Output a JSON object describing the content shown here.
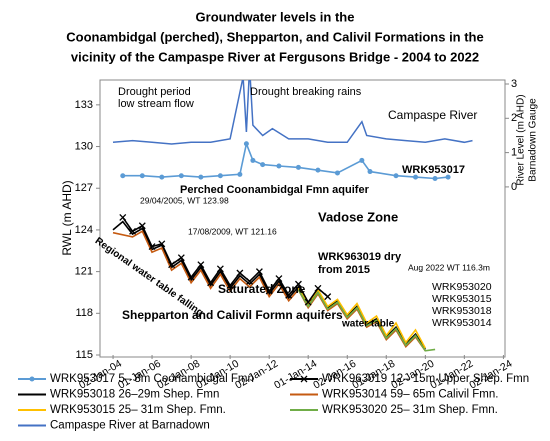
{
  "chart_data": {
    "type": "line",
    "title": [
      "Groundwater levels in the",
      "Coonambidgal (perched), Shepparton, and Calivil Formations in the",
      "vicinity of  the Campaspe River at Fergusons Bridge -  2004 to 2022"
    ],
    "ylabel": "RWL (m AHD)",
    "y2label": [
      "River Level (m AHD)",
      "Barnadown Gauge"
    ],
    "xlim": [
      "2003-05",
      "2024-02"
    ],
    "xticks": [
      {
        "value": "2004-01-02",
        "label": "02-Jan-04"
      },
      {
        "value": "2006-01-01",
        "label": "01-Jan-06"
      },
      {
        "value": "2008-01-02",
        "label": "02-Jan-08"
      },
      {
        "value": "2010-01-01",
        "label": "01-Jan-10"
      },
      {
        "value": "2012-01-02",
        "label": "02-Jan-12"
      },
      {
        "value": "2014-01-01",
        "label": "01-Jan-14"
      },
      {
        "value": "2016-01-02",
        "label": "02-Jan-16"
      },
      {
        "value": "2018-01-01",
        "label": "01-Jan-18"
      },
      {
        "value": "2020-01-02",
        "label": "02-Jan-20"
      },
      {
        "value": "2022-01-01",
        "label": "01-Jan-22"
      },
      {
        "value": "2024-01-02",
        "label": "02-Jan-24"
      }
    ],
    "ylim": [
      115,
      134.5
    ],
    "yticks": [
      115,
      118,
      121,
      124,
      127,
      130,
      133
    ],
    "y2lim": [
      -4.9,
      3
    ],
    "y2ticks": [
      0,
      1,
      2,
      3
    ],
    "series": [
      {
        "name": "WRK953017  5– 8m Coonambidgal Fmn",
        "color": "#5b9bd5",
        "marker": "dot",
        "x": [
          "2004-07",
          "2005-07",
          "2006-07",
          "2007-07",
          "2008-07",
          "2009-07",
          "2010-07",
          "2010-11",
          "2011-03",
          "2011-09",
          "2012-07",
          "2013-07",
          "2014-07",
          "2015-07",
          "2016-10",
          "2017-03",
          "2018-07",
          "2019-07",
          "2020-07",
          "2021-03"
        ],
        "values": [
          127.9,
          127.9,
          127.8,
          127.9,
          127.8,
          127.9,
          128.0,
          130.2,
          129.0,
          128.7,
          128.6,
          128.5,
          128.3,
          128.1,
          129.0,
          128.2,
          127.9,
          127.8,
          127.7,
          127.8
        ]
      },
      {
        "name": "WRK963019  12– 15m Upper Shep. Fmn",
        "color": "#000000",
        "marker": "cross",
        "x": [
          "2004-07",
          "2005-01",
          "2005-07",
          "2006-01",
          "2006-07",
          "2007-01",
          "2007-07",
          "2008-01",
          "2008-07",
          "2009-01",
          "2009-07",
          "2010-01",
          "2010-07",
          "2011-01",
          "2011-07",
          "2012-01",
          "2012-07",
          "2013-01",
          "2013-07",
          "2014-01",
          "2014-07",
          "2015-01"
        ],
        "values": [
          124.9,
          123.9,
          124.3,
          122.8,
          123.0,
          121.5,
          122.0,
          120.6,
          121.5,
          120.2,
          121.2,
          120.0,
          120.9,
          120.3,
          121.0,
          119.6,
          120.5,
          119.3,
          120.1,
          118.8,
          119.8,
          119.2
        ]
      },
      {
        "name": "WRK953018  26–29m  Shep. Fmn",
        "color": "#000000",
        "x": [
          "2004-01",
          "2004-07",
          "2005-01",
          "2005-07",
          "2006-01",
          "2006-07",
          "2007-01",
          "2007-07",
          "2008-01",
          "2008-07",
          "2009-01",
          "2009-07",
          "2010-01",
          "2010-07",
          "2011-01",
          "2011-07",
          "2012-01",
          "2012-07",
          "2013-01",
          "2013-07",
          "2014-01",
          "2014-07",
          "2015-01",
          "2015-07",
          "2016-01",
          "2016-07",
          "2017-01",
          "2017-07",
          "2018-01",
          "2018-07",
          "2019-01",
          "2019-07",
          "2020-01"
        ],
        "values": [
          124.0,
          124.6,
          123.7,
          124.1,
          122.6,
          122.9,
          121.3,
          121.8,
          120.4,
          121.3,
          120.0,
          121.0,
          119.8,
          120.7,
          120.1,
          120.8,
          119.4,
          120.3,
          119.1,
          119.9,
          118.6,
          119.6,
          118.4,
          118.9,
          117.8,
          118.5,
          117.2,
          117.6,
          116.3,
          117.0,
          115.8,
          116.5,
          115.4
        ]
      },
      {
        "name": "WRK953014  59– 65m  Calivil Fmn.",
        "color": "#c55a11",
        "x": [
          "2004-01",
          "2005-01",
          "2005-07",
          "2006-01",
          "2006-07",
          "2007-01",
          "2007-07",
          "2008-01",
          "2008-07",
          "2009-01",
          "2009-07",
          "2010-01",
          "2010-07",
          "2011-01",
          "2011-07",
          "2012-01",
          "2012-07",
          "2013-01",
          "2013-07",
          "2014-01",
          "2014-07",
          "2015-01",
          "2015-07",
          "2016-01",
          "2016-07",
          "2017-01",
          "2017-07",
          "2018-01",
          "2018-07",
          "2019-01",
          "2019-07",
          "2020-01"
        ],
        "values": [
          123.8,
          123.5,
          123.9,
          122.4,
          122.7,
          121.1,
          121.6,
          120.2,
          121.1,
          119.8,
          120.8,
          119.6,
          120.5,
          119.9,
          120.6,
          119.2,
          120.1,
          118.9,
          119.7,
          118.4,
          119.4,
          118.2,
          118.7,
          117.6,
          118.3,
          117.0,
          117.4,
          116.1,
          116.8,
          115.6,
          116.3,
          115.3
        ]
      },
      {
        "name": "WRK953015  25– 31m Shep. Fmn.",
        "color": "#ffc000",
        "x": [
          "2013-07",
          "2014-01",
          "2014-07",
          "2015-01",
          "2015-07",
          "2016-01",
          "2016-07",
          "2017-01",
          "2017-07",
          "2018-01",
          "2018-07",
          "2019-01",
          "2019-07",
          "2020-01"
        ],
        "values": [
          119.8,
          118.7,
          119.7,
          118.5,
          119.0,
          117.9,
          118.7,
          117.3,
          117.8,
          116.4,
          117.3,
          115.9,
          116.8,
          115.5
        ]
      },
      {
        "name": "WRK953020  25– 31m Shep. Fmn.",
        "color": "#70ad47",
        "x": [
          "2013-07",
          "2014-01",
          "2014-07",
          "2015-01",
          "2015-07",
          "2016-01",
          "2016-07",
          "2017-01",
          "2017-07",
          "2018-01",
          "2018-07",
          "2019-01",
          "2019-07",
          "2020-01",
          "2020-07"
        ],
        "values": [
          119.7,
          118.5,
          119.5,
          118.3,
          118.8,
          117.7,
          118.4,
          117.1,
          117.5,
          116.2,
          116.9,
          115.7,
          116.4,
          115.3,
          115.4
        ]
      },
      {
        "name": "Campaspe River at Barnadown",
        "color": "#4472c4",
        "axis": "y2",
        "x": [
          "2004-01",
          "2005-01",
          "2006-01",
          "2007-01",
          "2008-01",
          "2009-01",
          "2010-01",
          "2010-09",
          "2010-11",
          "2011-01",
          "2011-03",
          "2011-09",
          "2012-03",
          "2013-01",
          "2014-01",
          "2015-01",
          "2016-01",
          "2016-10",
          "2017-01",
          "2018-01",
          "2019-01",
          "2020-01",
          "2021-01",
          "2022-01",
          "2022-06"
        ],
        "values": [
          1.3,
          1.35,
          1.3,
          1.25,
          1.3,
          1.3,
          1.4,
          3.2,
          1.6,
          3.5,
          1.8,
          1.5,
          1.7,
          1.4,
          1.4,
          1.3,
          1.3,
          1.9,
          1.5,
          1.4,
          1.35,
          1.3,
          1.4,
          1.3,
          1.35
        ]
      }
    ],
    "annotations": [
      "Drought period",
      "low stream flow",
      "Drought breaking rains",
      "Campaspe River",
      "WRK953017",
      "Perched Coonambidgal Fmn aquifer",
      "Vadose Zone",
      "29/04/2005, WT 123.98",
      "17/08/2009, WT 121.16",
      "Regional water table falling",
      "WRK963019 dry",
      "from 2015",
      "Aug 2022 WT 116.3m",
      "Saturated Zone",
      "WRK953020",
      "WRK953015",
      "WRK953018",
      "WRK953014",
      "Shepparton and Calivil Formn aquifers",
      "water table"
    ]
  }
}
